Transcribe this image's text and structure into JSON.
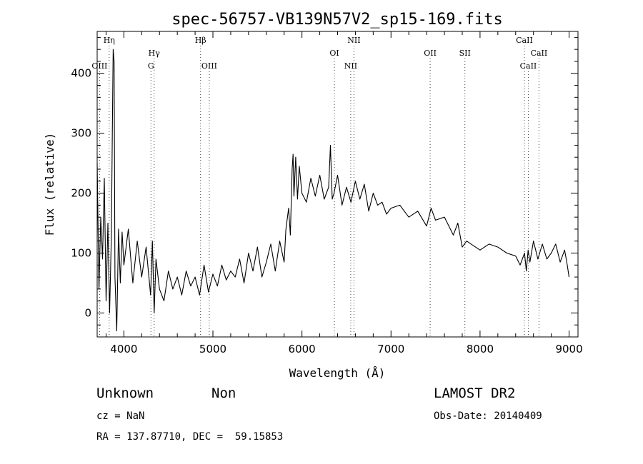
{
  "chart_data": {
    "type": "line",
    "title": "spec-56757-VB139N57V2_sp15-169.fits",
    "xlabel": "Wavelength (Å)",
    "ylabel": "Flux (relative)",
    "xlim": [
      3700,
      9100
    ],
    "ylim": [
      -40,
      470
    ],
    "xticks": [
      4000,
      5000,
      6000,
      7000,
      8000,
      9000
    ],
    "xtick_labels": [
      "4000",
      "5000",
      "6000",
      "7000",
      "8000",
      "9000"
    ],
    "yticks": [
      0,
      100,
      200,
      300,
      400
    ],
    "ytick_labels": [
      "0",
      "100",
      "200",
      "300",
      "400"
    ],
    "grid": false,
    "series": [
      {
        "x": [
          3700,
          3720,
          3740,
          3760,
          3780,
          3800,
          3820,
          3840,
          3860,
          3870,
          3880,
          3890,
          3900,
          3920,
          3940,
          3960,
          3980,
          4000,
          4050,
          4100,
          4150,
          4200,
          4250,
          4300,
          4320,
          4340,
          4360,
          4400,
          4450,
          4500,
          4550,
          4600,
          4650,
          4700,
          4750,
          4800,
          4850,
          4900,
          4950,
          5000,
          5050,
          5100,
          5150,
          5200,
          5250,
          5300,
          5350,
          5400,
          5450,
          5500,
          5550,
          5600,
          5650,
          5700,
          5750,
          5800,
          5820,
          5850,
          5870,
          5890,
          5900,
          5910,
          5930,
          5950,
          5970,
          6000,
          6050,
          6100,
          6150,
          6200,
          6250,
          6300,
          6320,
          6340,
          6360,
          6400,
          6450,
          6500,
          6550,
          6600,
          6650,
          6700,
          6750,
          6800,
          6850,
          6900,
          6950,
          7000,
          7100,
          7200,
          7300,
          7400,
          7450,
          7500,
          7600,
          7700,
          7750,
          7800,
          7850,
          7900,
          8000,
          8100,
          8200,
          8300,
          8400,
          8450,
          8500,
          8520,
          8540,
          8560,
          8600,
          8650,
          8700,
          8750,
          8800,
          8850,
          8900,
          8950,
          8980,
          9000
        ],
        "y": [
          250,
          40,
          160,
          90,
          225,
          20,
          150,
          0,
          130,
          300,
          440,
          420,
          60,
          -30,
          140,
          50,
          135,
          80,
          140,
          50,
          120,
          60,
          110,
          30,
          120,
          0,
          90,
          40,
          20,
          70,
          40,
          60,
          30,
          70,
          45,
          60,
          30,
          80,
          35,
          65,
          45,
          80,
          55,
          70,
          60,
          90,
          50,
          100,
          70,
          110,
          60,
          85,
          115,
          70,
          120,
          85,
          140,
          175,
          130,
          240,
          265,
          195,
          260,
          190,
          245,
          200,
          185,
          225,
          195,
          230,
          190,
          210,
          280,
          190,
          200,
          230,
          180,
          210,
          185,
          220,
          190,
          215,
          170,
          200,
          180,
          185,
          165,
          175,
          180,
          160,
          170,
          145,
          175,
          155,
          160,
          130,
          150,
          110,
          120,
          115,
          105,
          115,
          110,
          100,
          95,
          80,
          100,
          70,
          105,
          85,
          120,
          90,
          115,
          90,
          100,
          115,
          85,
          105,
          80,
          60
        ]
      }
    ],
    "lines": [
      {
        "label": "OIII",
        "x": 3727,
        "row": 3
      },
      {
        "label": "Hη",
        "x": 3835,
        "row": 1
      },
      {
        "label": "Hγ",
        "x": 4340,
        "row": 2
      },
      {
        "label": "G",
        "x": 4304,
        "row": 3
      },
      {
        "label": "Hβ",
        "x": 4861,
        "row": 1
      },
      {
        "label": "OIII",
        "x": 4959,
        "row": 3
      },
      {
        "label": "OI",
        "x": 6364,
        "row": 2
      },
      {
        "label": "NII",
        "x": 6584,
        "row": 1
      },
      {
        "label": "NII",
        "x": 6548,
        "row": 3
      },
      {
        "label": "OII",
        "x": 7440,
        "row": 2
      },
      {
        "label": "SII",
        "x": 7830,
        "row": 2
      },
      {
        "label": "CaII",
        "x": 8498,
        "row": 1
      },
      {
        "label": "CaII",
        "x": 8662,
        "row": 2
      },
      {
        "label": "CaII",
        "x": 8542,
        "row": 3
      }
    ]
  },
  "info": {
    "class": "Unknown",
    "subclass": "Non",
    "survey": "LAMOST DR2",
    "cz": "cz = NaN",
    "obs_date": "Obs-Date: 20140409",
    "coords": "RA = 137.87710, DEC =  59.15853"
  }
}
